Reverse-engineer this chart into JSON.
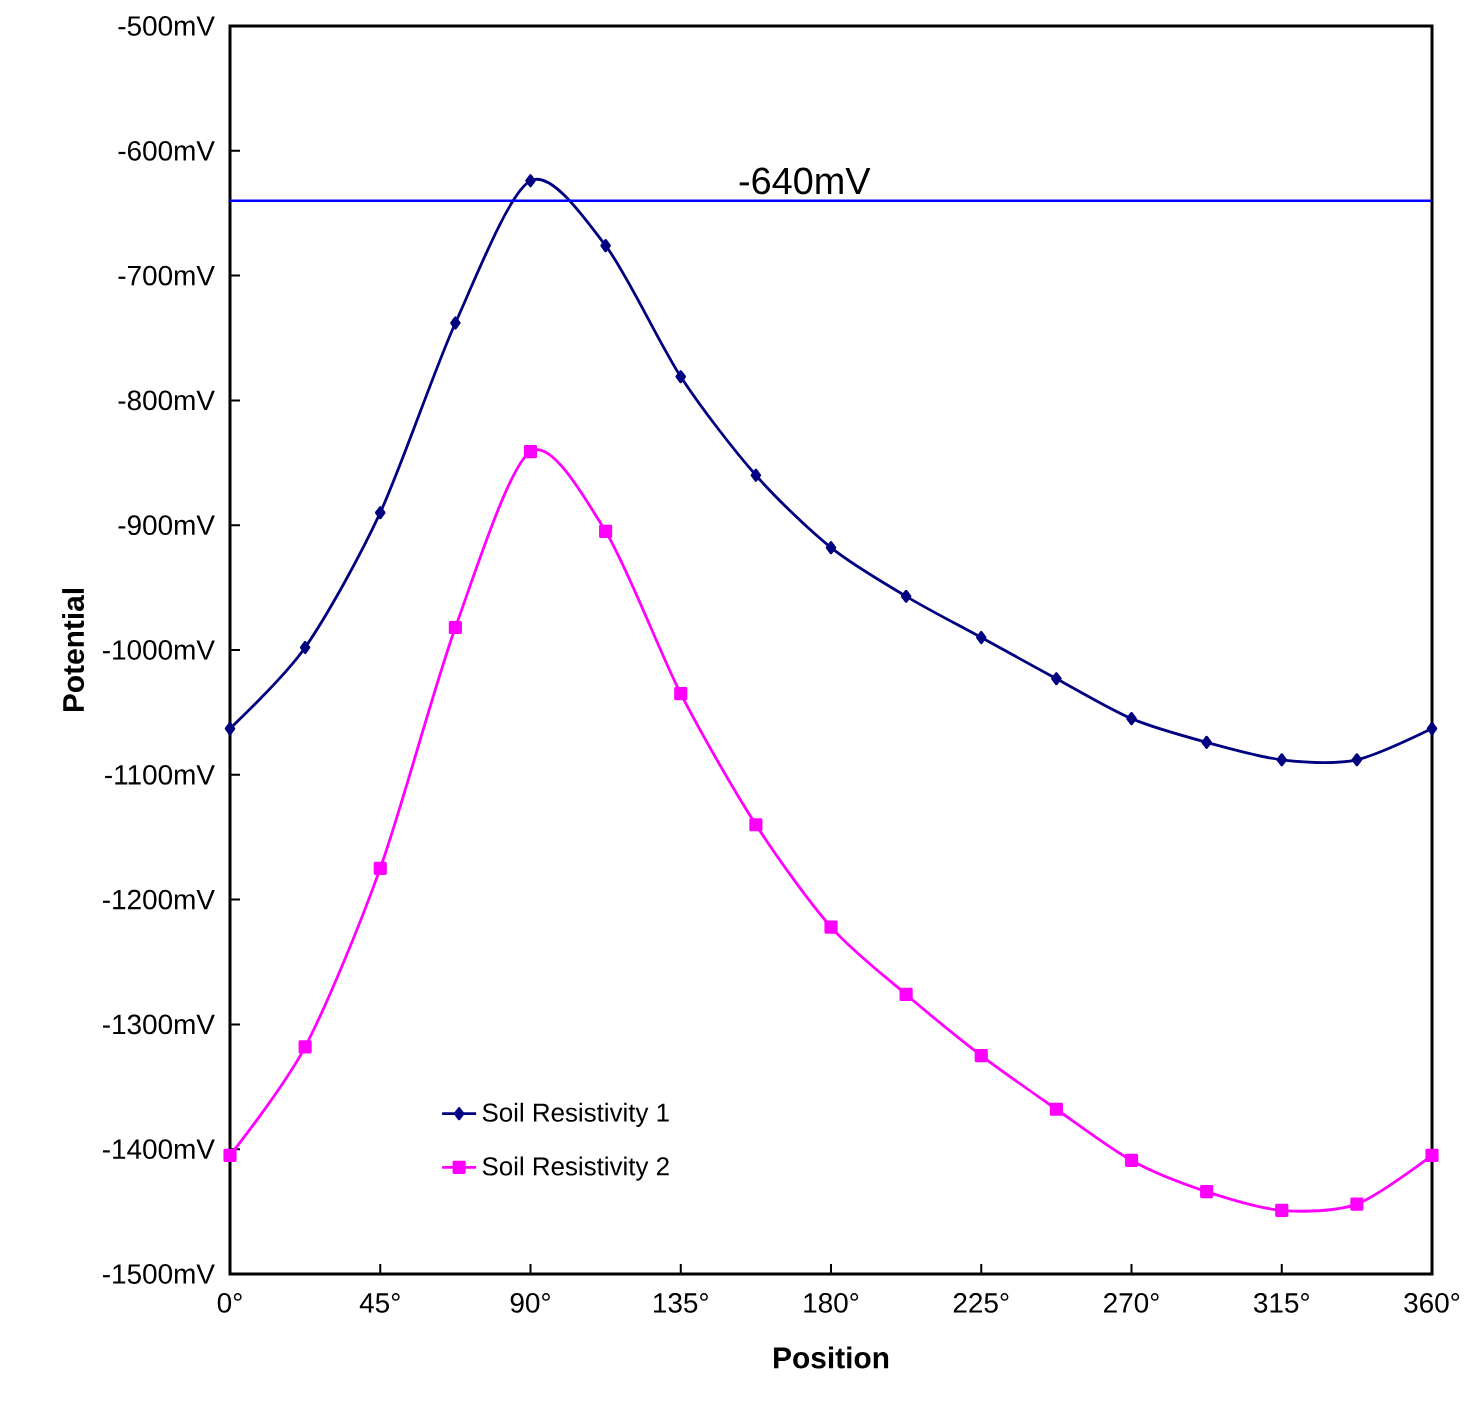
{
  "chart_data": {
    "type": "line",
    "xlabel": "Position",
    "ylabel": "Potential",
    "x": [
      0,
      22.5,
      45,
      67.5,
      90,
      112.5,
      135,
      157.5,
      180,
      202.5,
      225,
      247.5,
      270,
      292.5,
      315,
      337.5,
      360
    ],
    "series": [
      {
        "name": "Soil Resistivity 1",
        "color": "#000080",
        "marker": "diamond",
        "values": [
          -1063,
          -998,
          -890,
          -738,
          -624,
          -676,
          -781,
          -860,
          -918,
          -957,
          -990,
          -1023,
          -1055,
          -1074,
          -1088,
          -1088,
          -1063
        ]
      },
      {
        "name": "Soil Resistivity 2",
        "color": "#ff00ff",
        "marker": "square",
        "values": [
          -1405,
          -1318,
          -1175,
          -982,
          -841,
          -905,
          -1035,
          -1140,
          -1222,
          -1276,
          -1325,
          -1368,
          -1409,
          -1434,
          -1449,
          -1444,
          -1405
        ]
      }
    ],
    "xlim": [
      0,
      360
    ],
    "xticks": [
      {
        "value": 0,
        "label": "0°"
      },
      {
        "value": 45,
        "label": "45°"
      },
      {
        "value": 90,
        "label": "90°"
      },
      {
        "value": 135,
        "label": "135°"
      },
      {
        "value": 180,
        "label": "180°"
      },
      {
        "value": 225,
        "label": "225°"
      },
      {
        "value": 270,
        "label": "270°"
      },
      {
        "value": 315,
        "label": "315°"
      },
      {
        "value": 360,
        "label": "360°"
      }
    ],
    "ylim": [
      -1500,
      -500
    ],
    "yticks": [
      {
        "value": -1500,
        "label": "-1500mV"
      },
      {
        "value": -1400,
        "label": "-1400mV"
      },
      {
        "value": -1300,
        "label": "-1300mV"
      },
      {
        "value": -1200,
        "label": "-1200mV"
      },
      {
        "value": -1100,
        "label": "-1100mV"
      },
      {
        "value": -1000,
        "label": "-1000mV"
      },
      {
        "value": -900,
        "label": "-900mV"
      },
      {
        "value": -800,
        "label": "-800mV"
      },
      {
        "value": -700,
        "label": "-700mV"
      },
      {
        "value": -600,
        "label": "-600mV"
      },
      {
        "value": -500,
        "label": "-500mV"
      }
    ],
    "ref_lines": [
      {
        "axis": "y",
        "value": -640,
        "label": "-640mV",
        "color": "#0000ff"
      }
    ],
    "grid": false,
    "legend": "bottom left",
    "line_style": "solid"
  }
}
